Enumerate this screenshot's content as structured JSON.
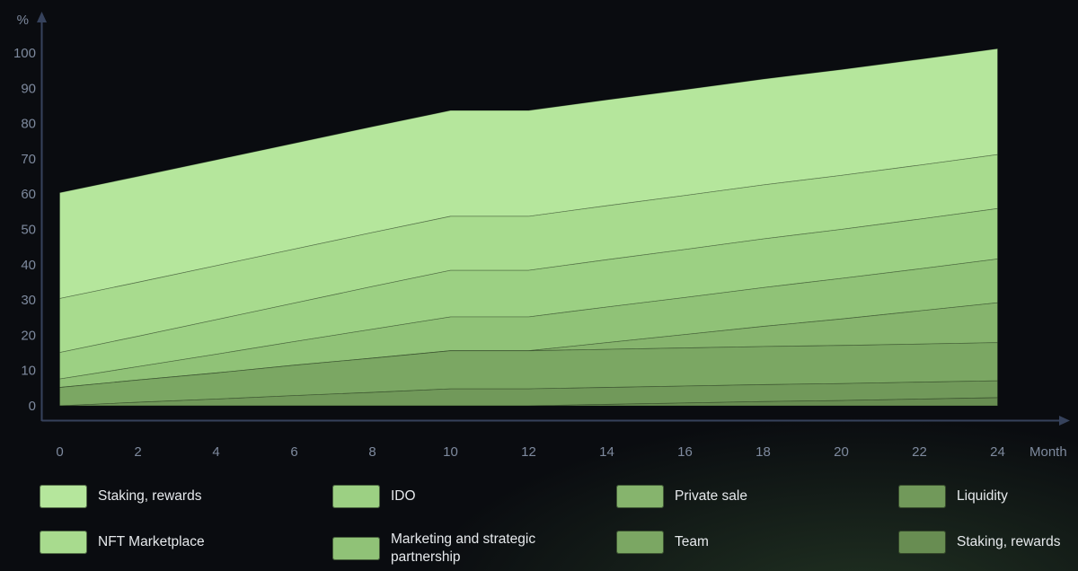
{
  "axes": {
    "y_unit": "%",
    "x_unit": "Month",
    "y_tick_labels": [
      "0",
      "10",
      "20",
      "30",
      "40",
      "50",
      "60",
      "70",
      "80",
      "90",
      "100"
    ],
    "x_tick_labels": [
      "0",
      "2",
      "4",
      "6",
      "8",
      "10",
      "12",
      "14",
      "16",
      "18",
      "20",
      "22",
      "24"
    ]
  },
  "colors": {
    "background": "#0a0c10",
    "axis_line": "#36425c",
    "tick_text": "#7e8a9e",
    "legend_text": "#e6e9ec",
    "palette_top_to_bottom": [
      "#b5e69c",
      "#a8db8e",
      "#9cd083",
      "#90c277",
      "#86b46d",
      "#7ba763",
      "#71995a",
      "#688d52"
    ]
  },
  "chart_data": {
    "type": "area",
    "stacked": true,
    "title": "",
    "xlabel": "Month",
    "ylabel": "%",
    "xlim": [
      0,
      24
    ],
    "ylim": [
      0,
      100
    ],
    "grid": false,
    "legend_position": "bottom",
    "x": [
      0,
      2,
      4,
      6,
      8,
      10,
      12,
      14,
      16,
      18,
      20,
      22,
      24
    ],
    "series_note": "stacked token vesting schedule, percent of supply unlocked; series listed top-of-stack first",
    "series": [
      {
        "name": "Staking, rewards",
        "color": "#b5e69c",
        "values": [
          30,
          30,
          30,
          30,
          30,
          30,
          30,
          30,
          30,
          30,
          30,
          30,
          30
        ]
      },
      {
        "name": "NFT Marketplace",
        "color": "#a8db8e",
        "values": [
          15.3,
          15.3,
          15.3,
          15.3,
          15.3,
          15.3,
          15.3,
          15.3,
          15.3,
          15.3,
          15.3,
          15.3,
          15.3
        ]
      },
      {
        "name": "IDO",
        "color": "#9cd083",
        "values": [
          7.5,
          8.6,
          9.8,
          10.9,
          12.1,
          13.2,
          13.2,
          13.4,
          13.6,
          13.8,
          13.9,
          14.1,
          14.3
        ]
      },
      {
        "name": "Marketing and strategic partnership",
        "color": "#90c277",
        "values": [
          2.4,
          3.8,
          5.3,
          6.7,
          8.2,
          9.6,
          9.6,
          10.1,
          10.5,
          11,
          11.5,
          11.9,
          12.4
        ]
      },
      {
        "name": "Private sale",
        "color": "#86b46d",
        "values": [
          0,
          0,
          0,
          0,
          0,
          0,
          0,
          1.9,
          3.8,
          5.7,
          7.5,
          9.4,
          11.3
        ]
      },
      {
        "name": "Team",
        "color": "#7ba763",
        "values": [
          5.2,
          6.3,
          7.4,
          8.6,
          9.7,
          10.8,
          10.8,
          10.8,
          10.8,
          10.8,
          10.8,
          10.8,
          10.8
        ]
      },
      {
        "name": "Liquidity",
        "color": "#71995a",
        "values": [
          0,
          1,
          1.9,
          2.9,
          3.8,
          4.8,
          4.8,
          4.8,
          4.8,
          4.8,
          4.8,
          4.8,
          4.8
        ]
      },
      {
        "name": "Staking, rewards",
        "color": "#688d52",
        "values": [
          0,
          0,
          0,
          0,
          0,
          0,
          0,
          0.4,
          0.8,
          1.2,
          1.5,
          1.9,
          2.3
        ]
      }
    ],
    "totals_by_x": [
      60.4,
      65,
      69.7,
      74.4,
      79.1,
      83.7,
      83.7,
      86.7,
      89.6,
      92.5,
      95.3,
      98.2,
      101.2
    ]
  },
  "legend": {
    "items": [
      {
        "label": "Staking, rewards",
        "color": "#b5e69c"
      },
      {
        "label": "IDO",
        "color": "#9cd083"
      },
      {
        "label": "Private sale",
        "color": "#86b46d"
      },
      {
        "label": "Liquidity",
        "color": "#71995a"
      },
      {
        "label": "NFT Marketplace",
        "color": "#a8db8e"
      },
      {
        "label": "Marketing and strategic partnership",
        "color": "#90c277"
      },
      {
        "label": "Team",
        "color": "#7ba763"
      },
      {
        "label": "Staking, rewards",
        "color": "#688d52"
      }
    ]
  }
}
